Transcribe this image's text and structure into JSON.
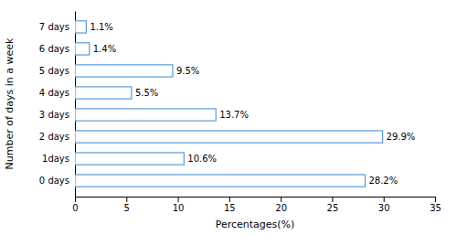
{
  "chart_data": {
    "type": "bar",
    "orientation": "horizontal",
    "categories": [
      "0 days",
      "1days",
      "2 days",
      "3 days",
      "4 days",
      "5 days",
      "6 days",
      "7 days"
    ],
    "values": [
      28.2,
      10.6,
      29.9,
      13.7,
      5.5,
      9.5,
      1.4,
      1.1
    ],
    "value_labels": [
      "28.2%",
      "10.6%",
      "29.9%",
      "13.7%",
      "5.5%",
      "9.5%",
      "1.4%",
      "1.1%"
    ],
    "data_labels": true,
    "color": "#5b9bd5",
    "xlabel": "Percentages(%)",
    "ylabel": "Number of days in a week",
    "xlim": [
      0,
      35
    ],
    "xticks": [
      0,
      5,
      10,
      15,
      20,
      25,
      30,
      35
    ],
    "grid": false
  }
}
